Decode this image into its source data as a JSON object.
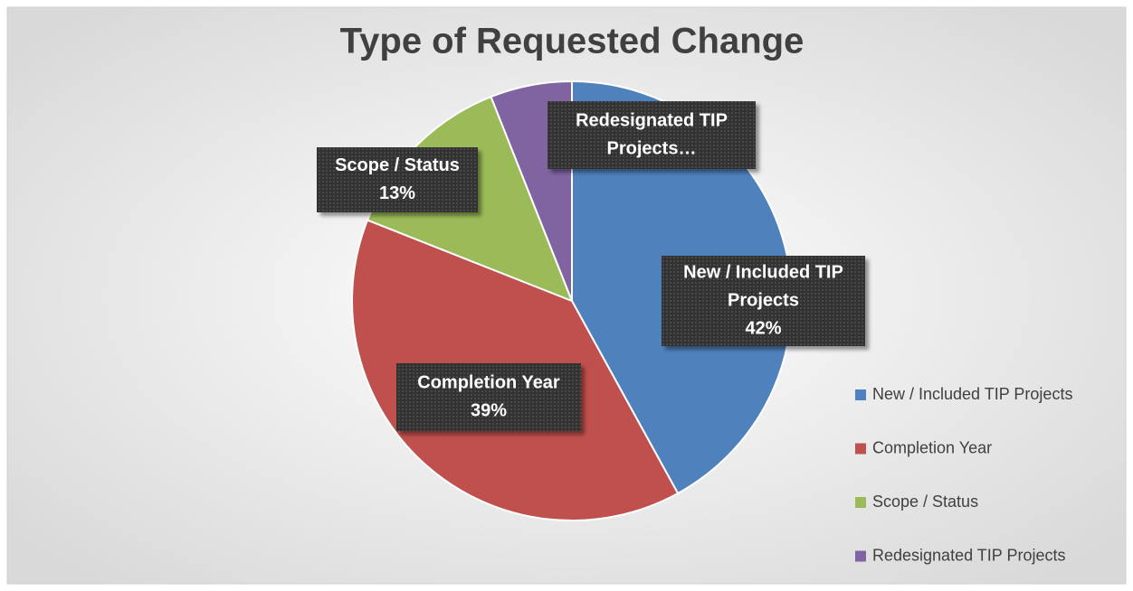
{
  "chart_data": {
    "type": "pie",
    "title": "Type of Requested Change",
    "categories": [
      "New / Included TIP Projects",
      "Completion Year",
      "Scope / Status",
      "Redesignated TIP Projects"
    ],
    "values": [
      42,
      39,
      13,
      6
    ],
    "value_labels": [
      "42%",
      "39%",
      "13%",
      null
    ],
    "label_names": [
      [
        "New / Included TIP",
        "Projects"
      ],
      [
        "Completion Year"
      ],
      [
        "Scope / Status"
      ],
      [
        "Redesignated TIP",
        "Projects…"
      ]
    ],
    "colors": [
      "#4f81bd",
      "#c0504d",
      "#9bbb59",
      "#8064a2"
    ],
    "legend": "right"
  }
}
